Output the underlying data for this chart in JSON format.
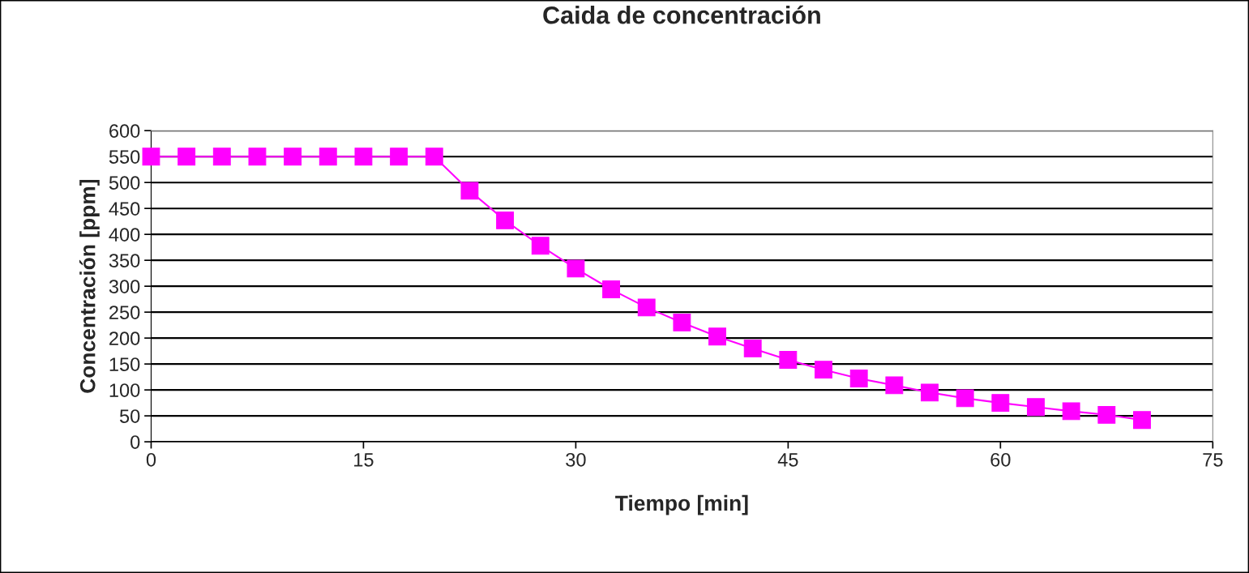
{
  "chart_data": {
    "type": "line",
    "title": "Caida de concentración",
    "xlabel": "Tiempo [min]",
    "ylabel": "Concentración [ppm]",
    "x": [
      0,
      2.5,
      5,
      7.5,
      10,
      12.5,
      15,
      17.5,
      20,
      22.5,
      25,
      27.5,
      30,
      32.5,
      35,
      37.5,
      40,
      42.5,
      45,
      47.5,
      50,
      52.5,
      55,
      57.5,
      60,
      62.5,
      65,
      67.5,
      70
    ],
    "series": [
      {
        "color": "#ff00ff",
        "values": [
          550,
          550,
          550,
          550,
          550,
          550,
          550,
          550,
          550,
          484,
          427,
          378,
          334,
          294,
          259,
          230,
          203,
          180,
          158,
          139,
          122,
          109,
          95,
          84,
          75,
          67,
          59,
          52,
          42
        ]
      }
    ],
    "xlim": [
      0,
      75
    ],
    "xticks": [
      0,
      15,
      30,
      45,
      60,
      75
    ],
    "ylim": [
      0,
      600
    ],
    "yticks": [
      0,
      50,
      100,
      150,
      200,
      250,
      300,
      350,
      400,
      450,
      500,
      550,
      600
    ],
    "grid": "y",
    "marker": "square",
    "line_style": "solid",
    "legend": false
  }
}
